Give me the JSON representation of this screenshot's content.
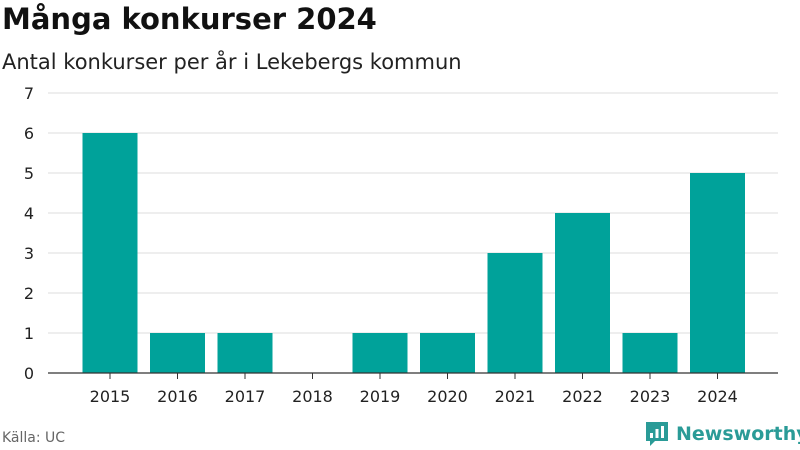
{
  "header": {
    "title": "Många konkurser 2024",
    "subtitle": "Antal konkurser per år i Lekebergs kommun"
  },
  "footer": {
    "source": "Källa: UC",
    "brand": "Newsworthy",
    "brand_icon": "newsworthy-logo-icon",
    "brand_color": "#2a9b97"
  },
  "chart_data": {
    "type": "bar",
    "title": "Många konkurser 2024",
    "subtitle": "Antal konkurser per år i Lekebergs kommun",
    "categories": [
      "2015",
      "2016",
      "2017",
      "2018",
      "2019",
      "2020",
      "2021",
      "2022",
      "2023",
      "2024"
    ],
    "values": [
      6,
      1,
      1,
      0,
      1,
      1,
      3,
      4,
      1,
      5
    ],
    "xlabel": "",
    "ylabel": "",
    "ylim": [
      0,
      7
    ],
    "yticks": [
      0,
      1,
      2,
      3,
      4,
      5,
      6,
      7
    ],
    "grid": true,
    "bar_color": "#00a29a"
  }
}
